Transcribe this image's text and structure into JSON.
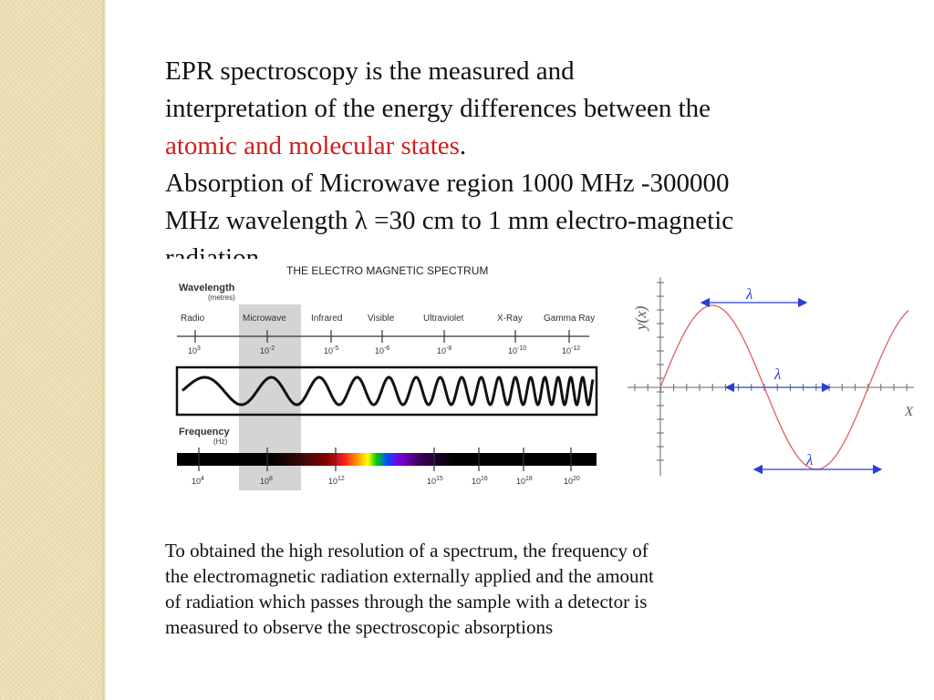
{
  "slide": {
    "lines": [
      {
        "parts": [
          {
            "text": "EPR spectroscopy is the measured and",
            "red": false
          }
        ]
      },
      {
        "parts": [
          {
            "text": " interpretation of the energy differences between the",
            "red": false
          }
        ]
      },
      {
        "parts": [
          {
            "text": "atomic and  molecular states",
            "red": true
          },
          {
            "text": ".",
            "red": false
          }
        ]
      },
      {
        "parts": [
          {
            "text": "Absorption of Microwave region 1000 MHz -300000",
            "red": false
          }
        ]
      },
      {
        "parts": [
          {
            "text": "MHz  wavelength λ =30 cm to 1 mm electro-magnetic",
            "red": false
          }
        ]
      },
      {
        "parts": [
          {
            "text": "radiation",
            "red": false
          }
        ]
      }
    ],
    "bottom_text": "To obtained the high resolution of a spectrum, the frequency of the electromagnetic radiation externally applied and the amount of radiation which passes through the sample with a detector is measured to observe the spectroscopic absorptions",
    "bottom_lines": [
      "To obtained the high resolution of a spectrum, the frequency of",
      "the electromagnetic radiation externally applied and the amount",
      "of radiation which passes through the sample with a detector is",
      "measured to observe the spectroscopic absorptions"
    ],
    "accent_color": "#d01e1e"
  },
  "spectrum_figure": {
    "title": "THE ELECTRO MAGNETIC SPECTRUM",
    "wavelength_label": "Wavelength",
    "wavelength_unit": "(metres)",
    "frequency_label": "Frequency",
    "frequency_unit": "(Hz)",
    "regions": [
      "Radio",
      "Microwave",
      "Infrared",
      "Visible",
      "Ultraviolet",
      "X-Ray",
      "Gamma Ray"
    ],
    "wavelength_ticks": [
      {
        "base": "10",
        "exp": "3"
      },
      {
        "base": "10",
        "exp": "-2"
      },
      {
        "base": "10",
        "exp": "-5"
      },
      {
        "base": "10",
        "exp": "-6"
      },
      {
        "base": "10",
        "exp": "-8"
      },
      {
        "base": "10",
        "exp": "-10"
      },
      {
        "base": "10",
        "exp": "-12"
      }
    ],
    "frequency_ticks": [
      {
        "base": "10",
        "exp": "4"
      },
      {
        "base": "10",
        "exp": "8"
      },
      {
        "base": "10",
        "exp": "12"
      },
      {
        "base": "10",
        "exp": "15"
      },
      {
        "base": "10",
        "exp": "16"
      },
      {
        "base": "10",
        "exp": "18"
      },
      {
        "base": "10",
        "exp": "20"
      }
    ],
    "highlighted_region": "Microwave"
  },
  "wave_figure": {
    "y_axis_label": "y(x)",
    "x_axis_label": "X",
    "lambda_labels": [
      "λ",
      "λ",
      "λ"
    ],
    "wave_color": "#e06a6a",
    "arrow_color": "#2a3fd6"
  }
}
